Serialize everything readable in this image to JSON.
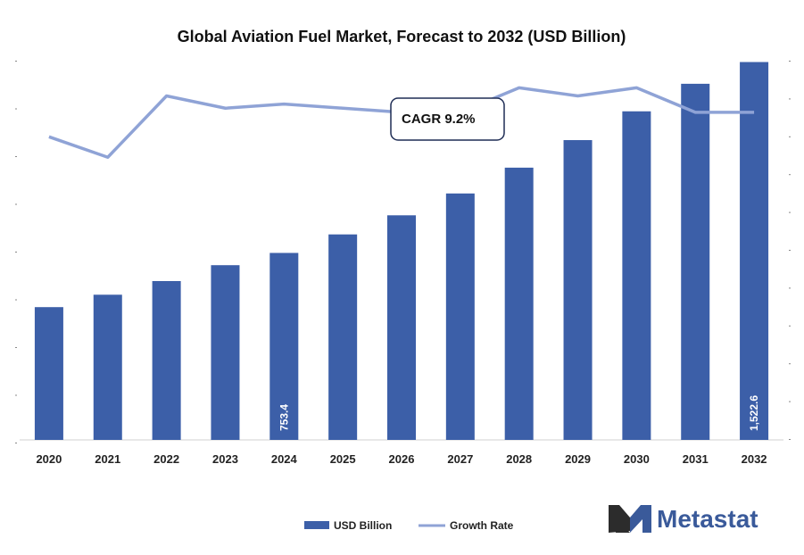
{
  "chart_data": {
    "type": "bar",
    "title": "Global Aviation Fuel Market, Forecast to 2032 (USD Billion)",
    "categories": [
      "2020",
      "2021",
      "2022",
      "2023",
      "2024",
      "2025",
      "2026",
      "2027",
      "2028",
      "2029",
      "2030",
      "2031",
      "2032"
    ],
    "series": [
      {
        "name": "USD Billion",
        "type": "bar",
        "color": "#3c5fa8",
        "values": [
          535,
          585,
          640,
          704,
          753.4,
          828,
          905,
          993,
          1097,
          1208,
          1324,
          1435,
          1522.6
        ],
        "labels": {
          "4": "753.4",
          "12": "1,522.6"
        }
      },
      {
        "name": "Growth Rate",
        "type": "line",
        "color": "#8fa3d6",
        "values": [
          7.8,
          7.3,
          8.8,
          8.5,
          8.6,
          8.5,
          8.4,
          8.4,
          9.0,
          8.8,
          9.0,
          8.4,
          8.4
        ]
      }
    ],
    "ylim": [
      0,
      1600
    ],
    "ylim_right": [
      0,
      10
    ],
    "grid": false
  },
  "annotation": {
    "cagr": "CAGR 9.2%"
  },
  "legend": {
    "bar_label": "USD Billion",
    "line_label": "Growth Rate",
    "placement": "bottom-center"
  },
  "logo": {
    "text": "Metastat",
    "color": "#3a5a9a"
  }
}
